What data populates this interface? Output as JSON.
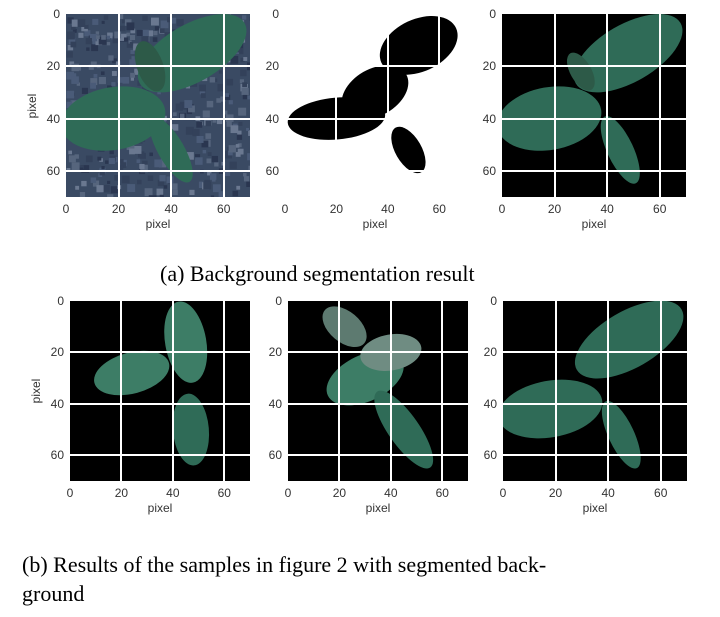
{
  "figure": {
    "axis_label": "pixel",
    "x_ticks": [
      "0",
      "20",
      "40",
      "60"
    ],
    "y_ticks": [
      "0",
      "20",
      "40",
      "60"
    ],
    "axis_range": [
      0,
      70
    ],
    "grid": true,
    "rows": [
      {
        "caption": "(a) Background segmentation result",
        "panels": [
          {
            "content": "leaf-photo-with-soil-background",
            "show_ylabel": true
          },
          {
            "content": "binary-mask",
            "show_ylabel": true
          },
          {
            "content": "leaf-with-black-background",
            "show_ylabel": true
          }
        ]
      },
      {
        "caption": "(b) Results of the samples in figure 2 with segmented background",
        "caption_lines": [
          "(b) Results of the samples in figure 2 with segmented back-",
          "ground"
        ],
        "panels": [
          {
            "content": "segmented-seedling-sample-1",
            "show_ylabel": true
          },
          {
            "content": "segmented-seedling-sample-2",
            "show_ylabel": true
          },
          {
            "content": "segmented-seedling-sample-3",
            "show_ylabel": true
          }
        ]
      }
    ],
    "colors": {
      "leaf": "#2f6b57",
      "leaf_light": "#3d7d66",
      "soil": "#3a4a63",
      "mask_bg": "#ffffff",
      "mask_fg": "#000000",
      "seg_bg": "#000000",
      "grid": "#ffffff"
    }
  }
}
